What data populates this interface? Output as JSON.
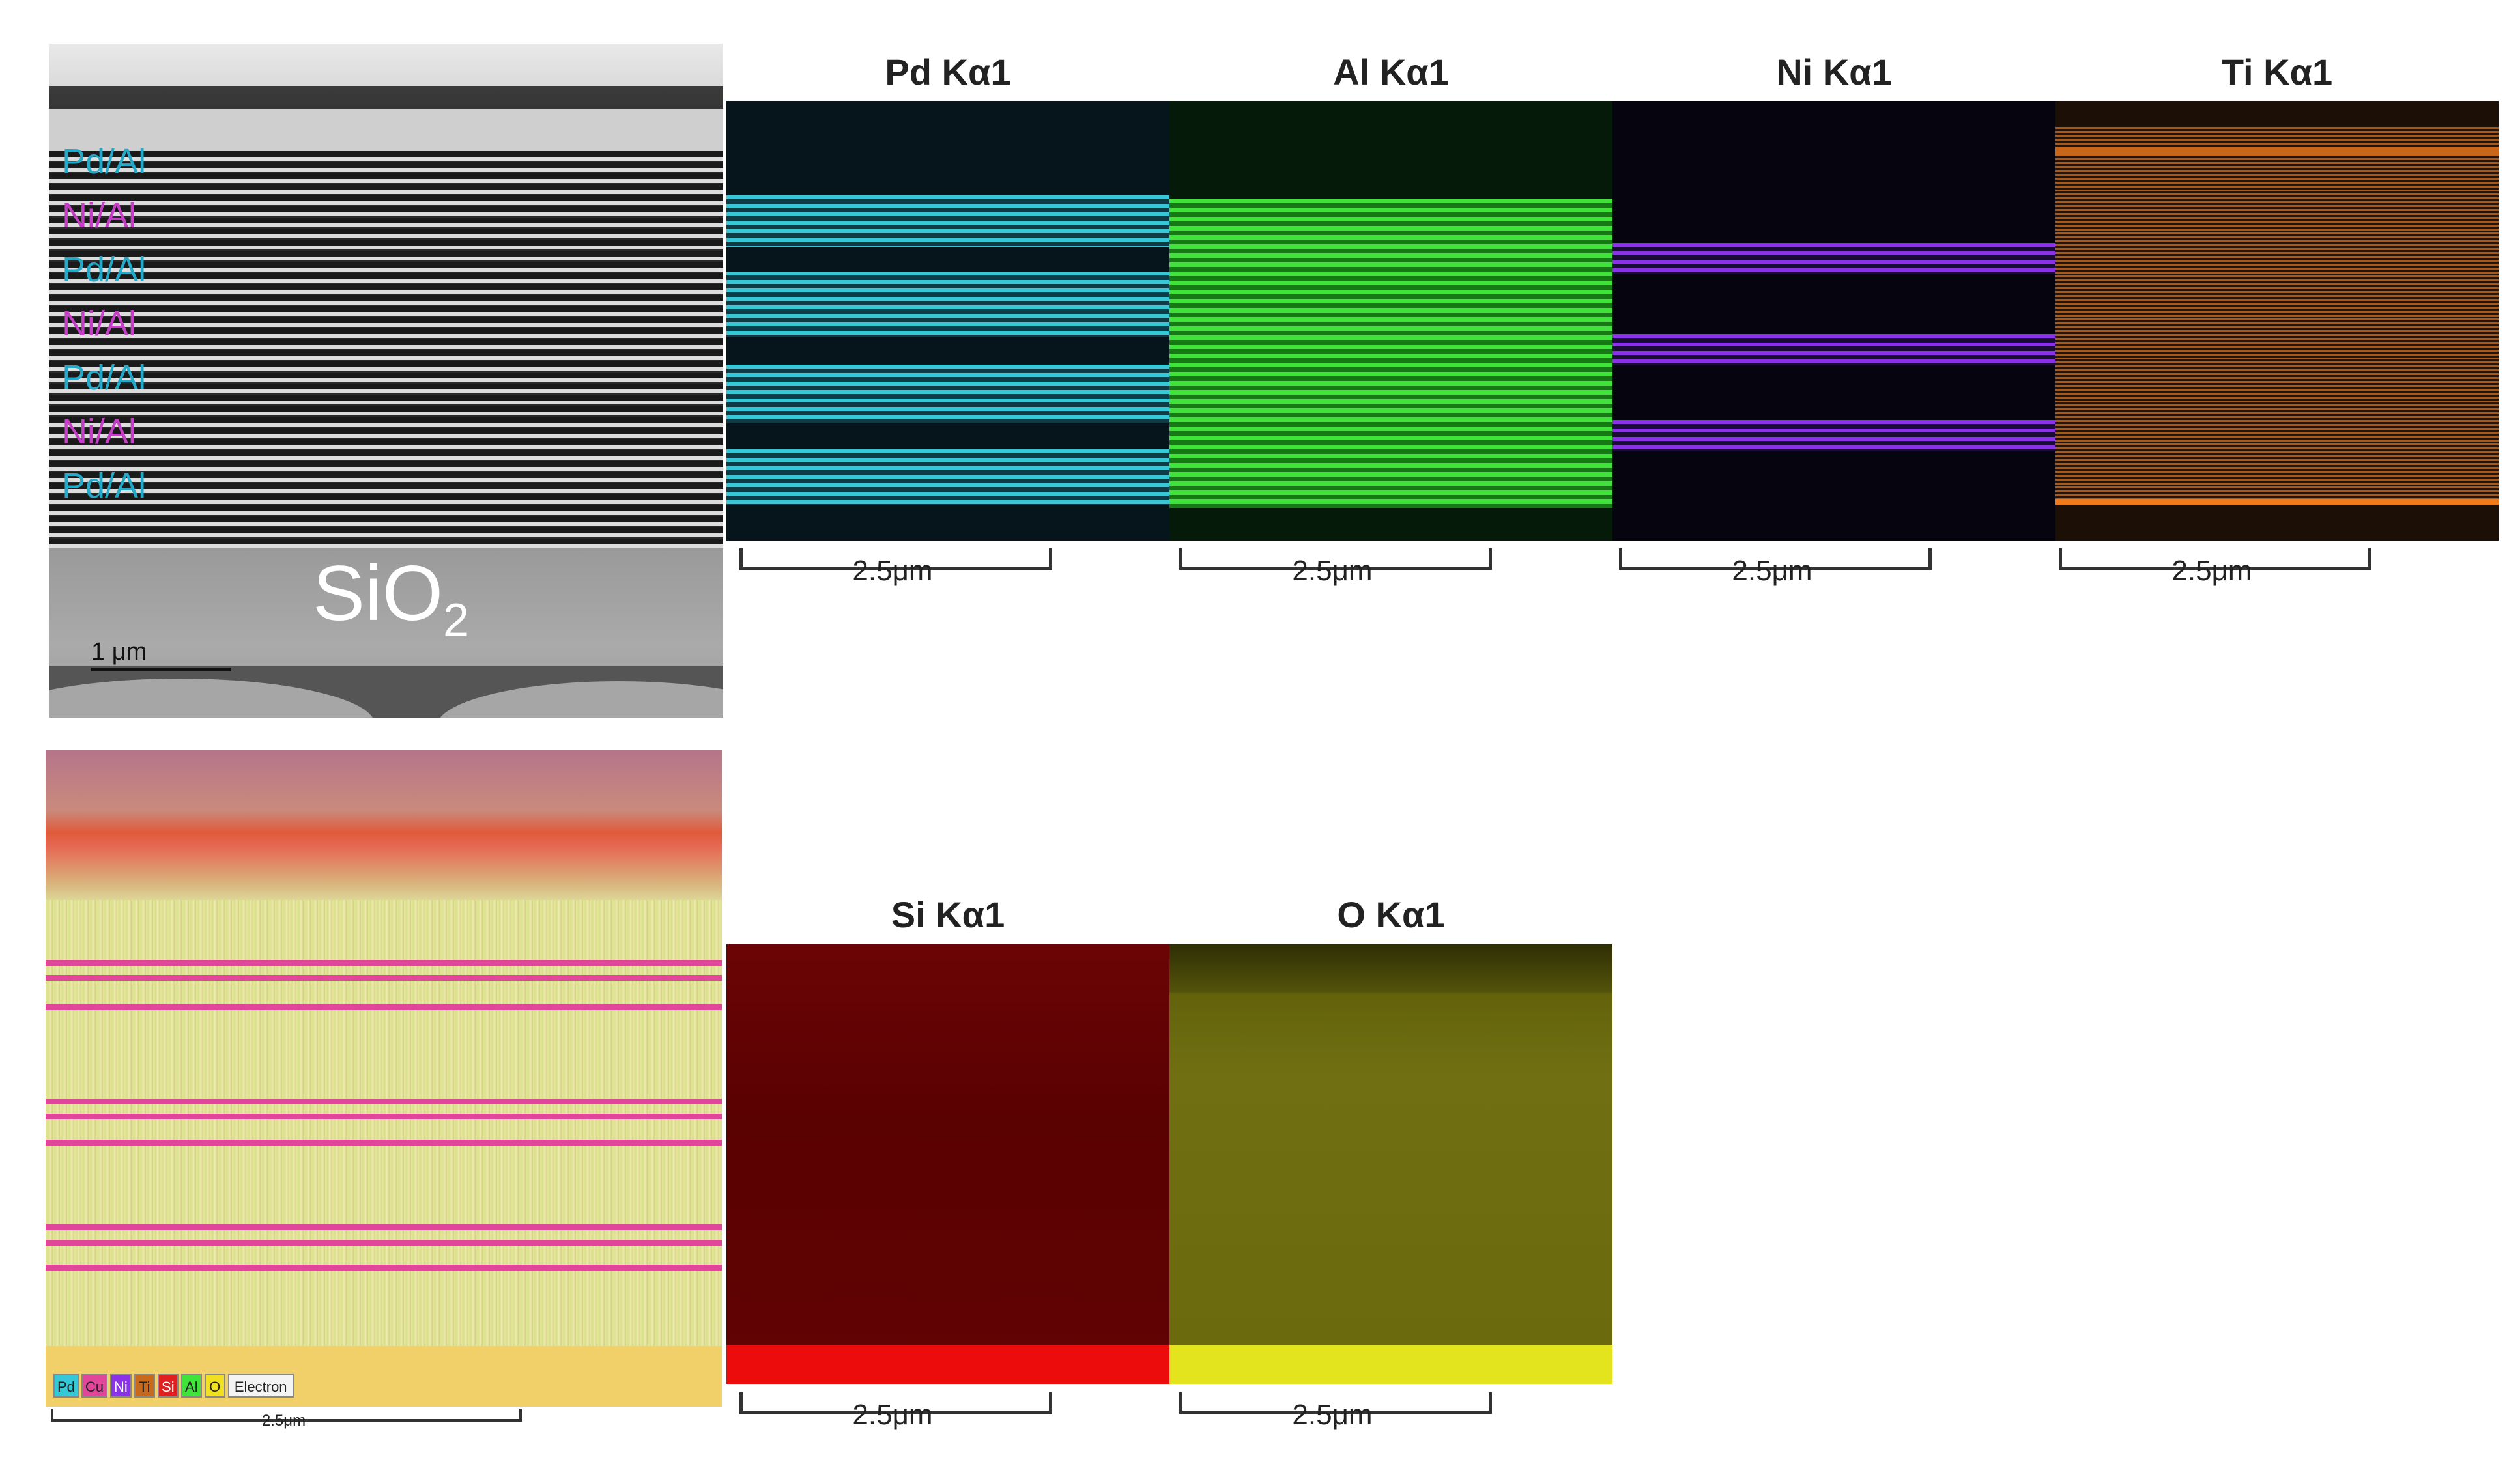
{
  "tem_panel": {
    "layer_labels": [
      "Pd/Al",
      "Ni/Al",
      "Pd/Al",
      "Ni/Al",
      "Pd/Al",
      "Ni/Al",
      "Pd/Al"
    ],
    "substrate_label": "SiO",
    "substrate_subscript": "2",
    "scale_label": "1 μm"
  },
  "element_maps": [
    {
      "title": "Pd Kα1",
      "color": "#36c8d6",
      "scale_label": "2.5μm"
    },
    {
      "title": "Al Kα1",
      "color": "#3fe33a",
      "scale_label": "2.5μm"
    },
    {
      "title": "Ni Kα1",
      "color": "#8a32e6",
      "scale_label": "2.5μm"
    },
    {
      "title": "Ti Kα1",
      "color": "#c86a1e",
      "scale_label": "2.5μm"
    },
    {
      "title": "Si Kα1",
      "color": "#c80a0a",
      "scale_label": "2.5μm"
    },
    {
      "title": "O Kα1",
      "color": "#c8c81a",
      "scale_label": "2.5μm"
    }
  ],
  "composite_map": {
    "legend": [
      {
        "label": "Pd",
        "color": "#36c8d6"
      },
      {
        "label": "Cu",
        "color": "#e0479a"
      },
      {
        "label": "Ni",
        "color": "#8a32e6"
      },
      {
        "label": "Ti",
        "color": "#c86a1e"
      },
      {
        "label": "Si",
        "color": "#e02020"
      },
      {
        "label": "Al",
        "color": "#3fe33a"
      },
      {
        "label": "O",
        "color": "#f0e020"
      },
      {
        "label": "Electron",
        "color": "#f4f4f4"
      }
    ],
    "scale_label": "2.5μm"
  }
}
